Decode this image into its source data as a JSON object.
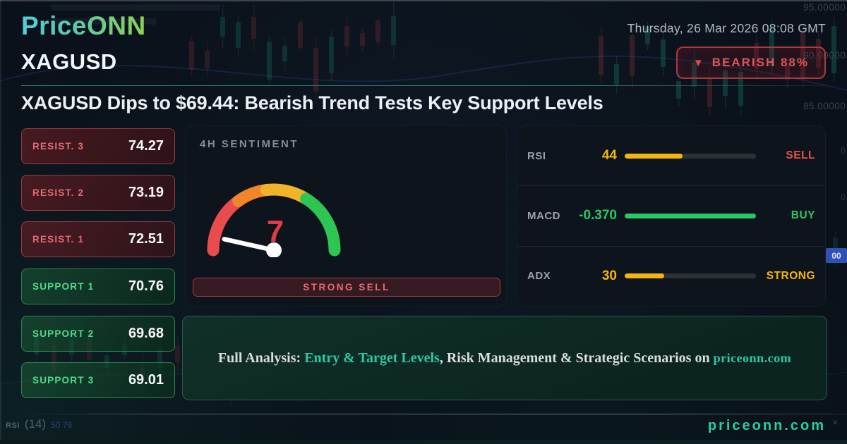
{
  "header": {
    "logo": "PriceONN",
    "date": "Thursday, 26 Mar 2026 08:08 GMT",
    "symbol": "XAGUSD",
    "signal_badge": {
      "icon": "down-triangle",
      "triangle": "▼",
      "label": "BEARISH 88%"
    },
    "headline": "XAGUSD Dips to $69.44: Bearish Trend Tests Key Support Levels"
  },
  "levels": [
    {
      "label": "RESIST. 3",
      "value": "74.27",
      "type": "resistance"
    },
    {
      "label": "RESIST. 2",
      "value": "73.19",
      "type": "resistance"
    },
    {
      "label": "RESIST. 1",
      "value": "72.51",
      "type": "resistance"
    },
    {
      "label": "SUPPORT 1",
      "value": "70.76",
      "type": "support"
    },
    {
      "label": "SUPPORT 2",
      "value": "69.68",
      "type": "support"
    },
    {
      "label": "SUPPORT 3",
      "value": "69.01",
      "type": "support"
    }
  ],
  "sentiment": {
    "title": "4H SENTIMENT",
    "value": 7,
    "scale_max": 100,
    "verdict": "STRONG SELL",
    "gauge_colors": {
      "red": "#e84c4c",
      "orange": "#f2842c",
      "amber": "#f0b42a",
      "green": "#2dc653"
    },
    "value_color": "#e13b45"
  },
  "indicators": {
    "rows": [
      {
        "label": "RSI",
        "value": "44",
        "bar_width": "44%",
        "bar_color": "#f5b50a",
        "value_color": "#f5b50a",
        "status": "SELL",
        "status_color": "#e8504d"
      },
      {
        "label": "MACD",
        "value": "-0.370",
        "bar_width": "100%",
        "bar_color": "#29c767",
        "value_color": "#29c767",
        "status": "BUY",
        "status_color": "#29c767"
      },
      {
        "label": "ADX",
        "value": "30",
        "bar_width": "30%",
        "bar_color": "#f5b50a",
        "value_color": "#f5b50a",
        "status": "STRONG",
        "status_color": "#f5b50a"
      }
    ]
  },
  "banner": {
    "prefix": "Full Analysis: ",
    "highlight": "Entry & Target Levels",
    "middle": ", Risk Management & Strategic Scenarios on ",
    "site": "priceonn.com"
  },
  "footer": {
    "site": "priceonn.com",
    "close_icon": "×"
  },
  "background_chart": {
    "axis_labels": [
      "95.00000",
      "90.00000",
      "85.00000"
    ],
    "axis_zeros": [
      "0",
      "0"
    ],
    "price_chip": "00",
    "rsi_indicator": "RSI",
    "rsi_period": "(14)",
    "rsi_values": "50 76"
  },
  "colors": {
    "page_bg": "#0a111a",
    "card_bg": "#0d141b",
    "accent_teal": "#26cfa4",
    "bearish_red": "#e0555a",
    "bullish_green": "#4fdc8a",
    "warn_yellow": "#f5b50a"
  }
}
